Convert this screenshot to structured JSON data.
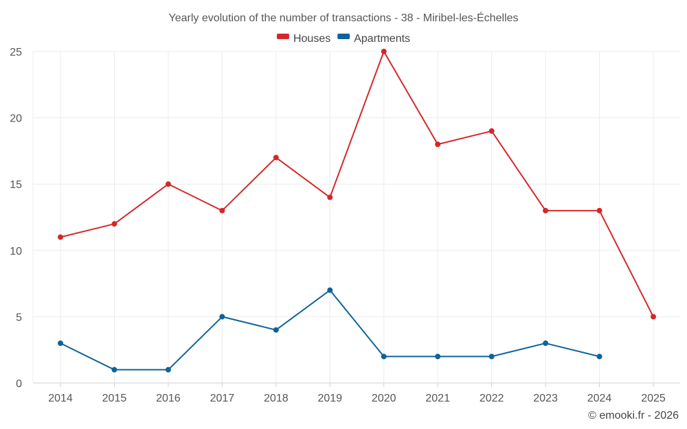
{
  "chart_data": {
    "type": "line",
    "title": "Yearly evolution of the number of transactions - 38 - Miribel-les-Échelles",
    "xlabel": "",
    "ylabel": "",
    "categories": [
      "2014",
      "2015",
      "2016",
      "2017",
      "2018",
      "2019",
      "2020",
      "2021",
      "2022",
      "2023",
      "2024",
      "2025"
    ],
    "ylim": [
      0,
      25
    ],
    "yticks": [
      0,
      5,
      10,
      15,
      20,
      25
    ],
    "grid": true,
    "legend_position": "top-center",
    "series": [
      {
        "name": "Houses",
        "color": "#d62728",
        "values": [
          11,
          12,
          15,
          13,
          17,
          14,
          25,
          18,
          19,
          13,
          13,
          5
        ]
      },
      {
        "name": "Apartments",
        "color": "#0e6399",
        "values": [
          3,
          1,
          1,
          5,
          4,
          7,
          2,
          2,
          2,
          3,
          2,
          null
        ]
      }
    ]
  },
  "credit": "© emooki.fr - 2026"
}
